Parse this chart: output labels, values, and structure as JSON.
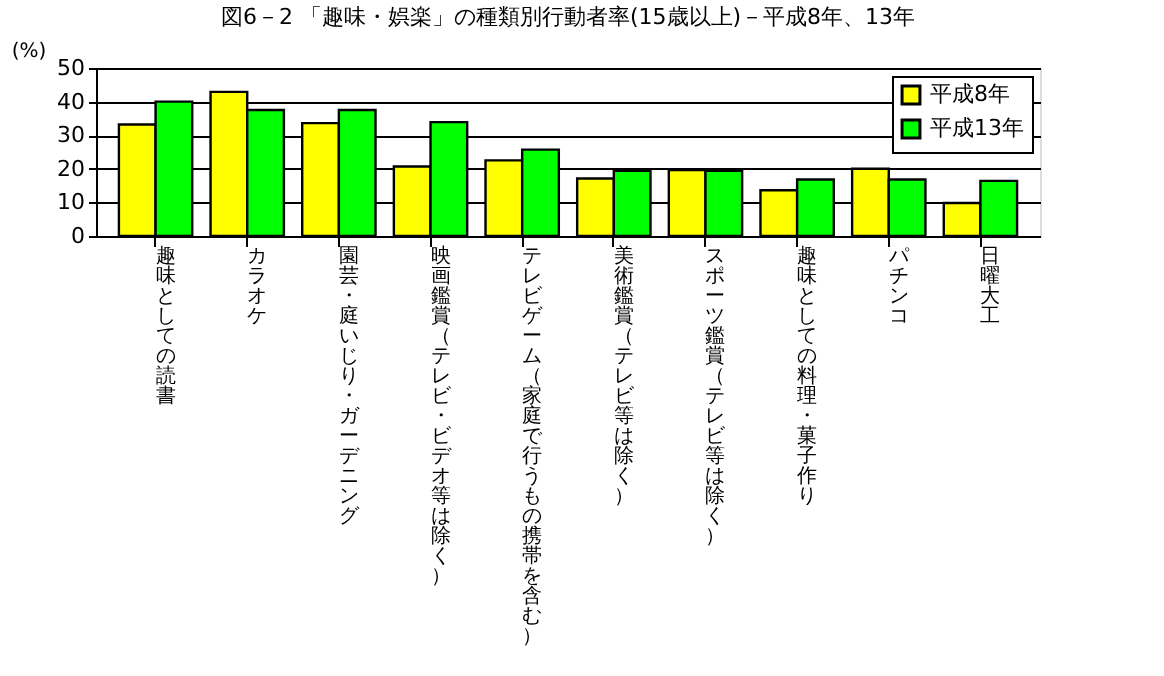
{
  "chart_data": {
    "type": "bar",
    "title": "図6－2 「趣味・娯楽」の種類別行動者率(15歳以上)－平成8年、13年",
    "ylabel": "(%)",
    "categories": [
      "趣味としての読書",
      "カラオケ",
      "園芸・庭いじり・ガーデニング",
      "映画鑑賞（テレビ・ビデオ等は除く）",
      "テレビゲーム（家庭で行うもの携帯を含む）",
      "美術鑑賞（テレビ等は除く）",
      "スポーツ鑑賞（テレビ等は除く）",
      "趣味としての料理・菓子作り",
      "パチンコ",
      "日曜大工"
    ],
    "series": [
      {
        "name": "平成8年",
        "color": "#ffff00",
        "values": [
          33.2,
          42.9,
          33.6,
          20.7,
          22.5,
          17.1,
          19.6,
          13.6,
          20.0,
          9.8
        ]
      },
      {
        "name": "平成13年",
        "color": "#00ff00",
        "values": [
          40.0,
          37.5,
          37.5,
          33.9,
          25.7,
          19.4,
          19.4,
          16.8,
          16.8,
          16.4
        ]
      }
    ],
    "ylim": [
      0,
      50
    ],
    "yticks": [
      0,
      10,
      20,
      30,
      40,
      50
    ],
    "grid": "y",
    "legend": "top right"
  }
}
